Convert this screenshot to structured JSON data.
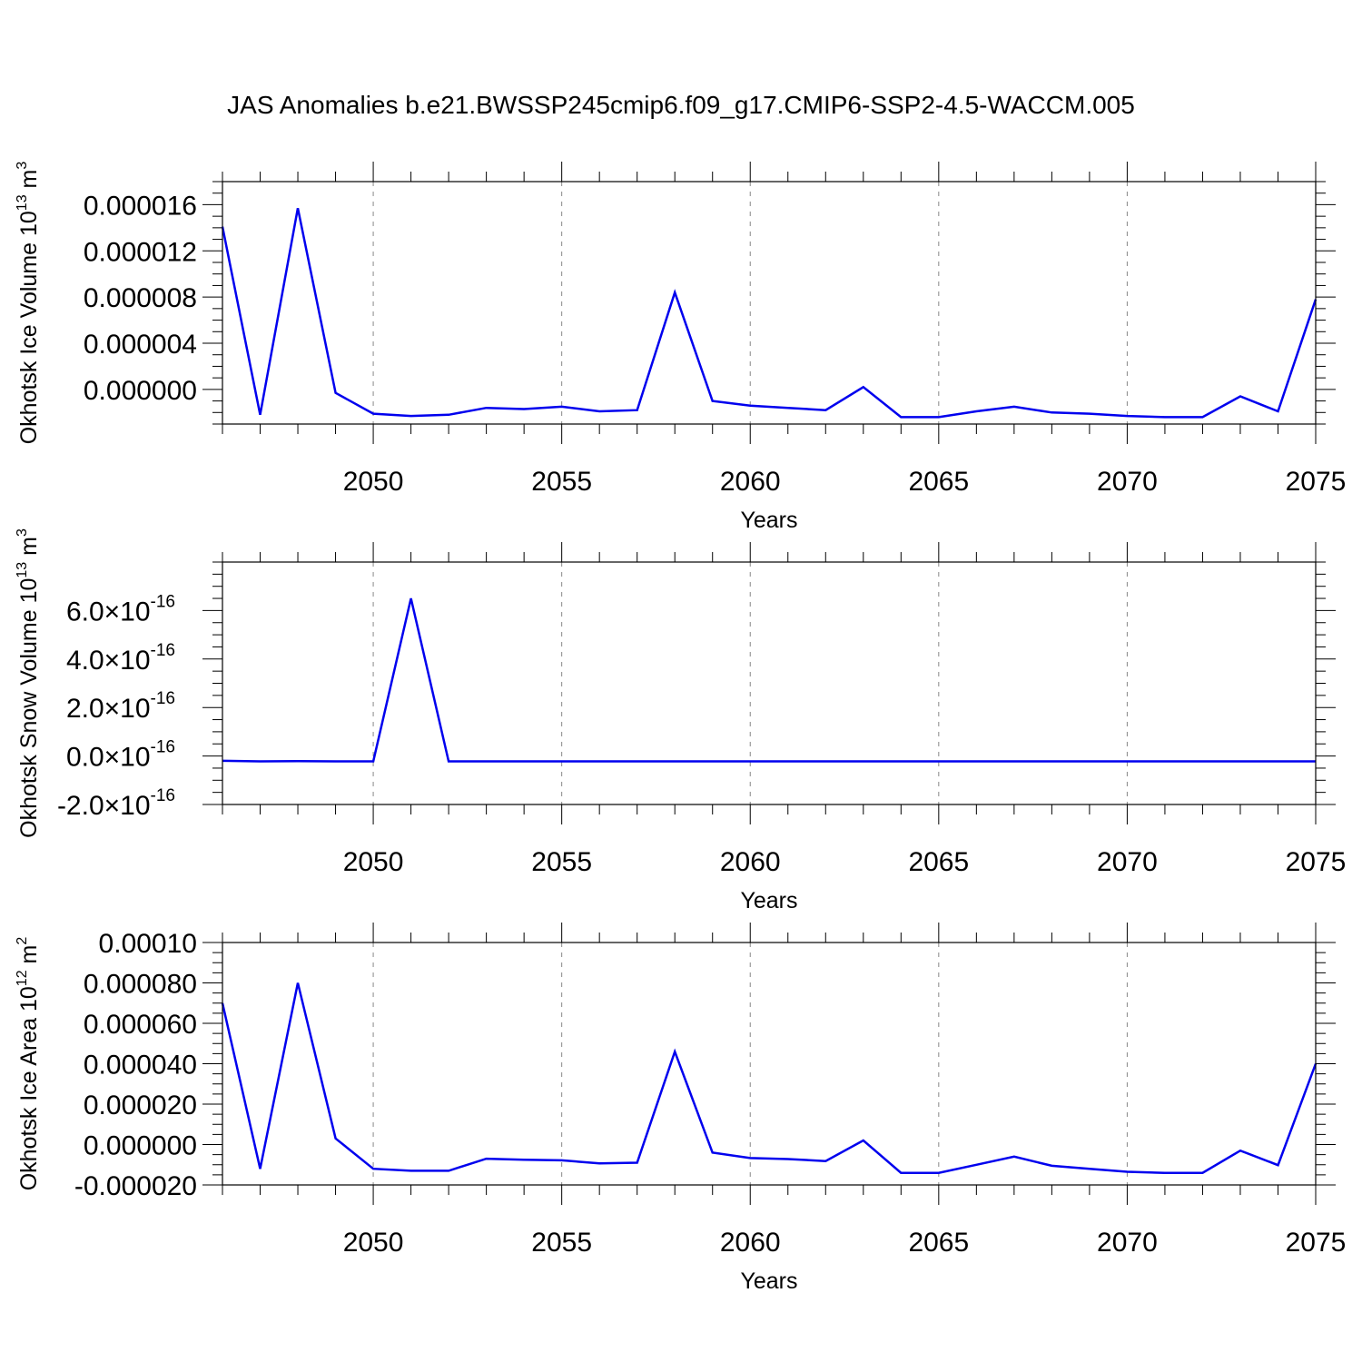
{
  "title": "JAS Anomalies b.e21.BWSSP245cmip6.f09_g17.CMIP6-SSP2-4.5-WACCM.005",
  "chart_data": [
    {
      "type": "line",
      "ylabel": "Okhotsk Ice Volume 10",
      "ylabel_sup": "13",
      "ylabel_unit": " m",
      "ylabel_unit_sup": "3",
      "xlabel": "Years",
      "xlim": [
        2046,
        2075
      ],
      "ylim": [
        -3e-06,
        1.8e-05
      ],
      "x_ticks": [
        2050,
        2055,
        2060,
        2065,
        2070,
        2075
      ],
      "x_tick_labels": [
        "2050",
        "2055",
        "2060",
        "2065",
        "2070",
        "2075"
      ],
      "y_ticks": [
        0,
        4e-06,
        8e-06,
        1.2e-05,
        1.6e-05
      ],
      "y_tick_labels": [
        "0.000000",
        "0.000004",
        "0.000008",
        "0.000012",
        "0.000016"
      ],
      "y_minor_step": 1e-06,
      "line_color": "#0000ee",
      "x": [
        2046,
        2047,
        2048,
        2049,
        2050,
        2051,
        2052,
        2053,
        2054,
        2055,
        2056,
        2057,
        2058,
        2059,
        2060,
        2061,
        2062,
        2063,
        2064,
        2065,
        2066,
        2067,
        2068,
        2069,
        2070,
        2071,
        2072,
        2073,
        2074,
        2075
      ],
      "values": [
        1.41e-05,
        -2.2e-06,
        1.57e-05,
        -3e-07,
        -2.1e-06,
        -2.3e-06,
        -2.2e-06,
        -1.6e-06,
        -1.7e-06,
        -1.5e-06,
        -1.9e-06,
        -1.8e-06,
        8.4e-06,
        -1e-06,
        -1.4e-06,
        -1.6e-06,
        -1.8e-06,
        2e-07,
        -2.4e-06,
        -2.4e-06,
        -1.9e-06,
        -1.5e-06,
        -2e-06,
        -2.1e-06,
        -2.3e-06,
        -2.4e-06,
        -2.4e-06,
        -6e-07,
        -1.9e-06,
        7.8e-06
      ]
    },
    {
      "type": "line",
      "ylabel": "Okhotsk Snow Volume 10",
      "ylabel_sup": "13",
      "ylabel_unit": " m",
      "ylabel_unit_sup": "3",
      "xlabel": "Years",
      "xlim": [
        2046,
        2075
      ],
      "ylim": [
        -2e-16,
        8e-16
      ],
      "x_ticks": [
        2050,
        2055,
        2060,
        2065,
        2070,
        2075
      ],
      "x_tick_labels": [
        "2050",
        "2055",
        "2060",
        "2065",
        "2070",
        "2075"
      ],
      "y_ticks": [
        -2e-16,
        0,
        2e-16,
        4e-16,
        6e-16
      ],
      "y_tick_labels": [
        "-2.0",
        "0.0",
        "2.0",
        "4.0",
        "6.0"
      ],
      "y_tick_multiplier": "10",
      "y_tick_exponent": "-16",
      "y_minor_step": 5e-17,
      "line_color": "#0000ee",
      "x": [
        2046,
        2047,
        2048,
        2049,
        2050,
        2051,
        2052,
        2053,
        2054,
        2055,
        2056,
        2057,
        2058,
        2059,
        2060,
        2061,
        2062,
        2063,
        2064,
        2065,
        2066,
        2067,
        2068,
        2069,
        2070,
        2071,
        2072,
        2073,
        2074,
        2075
      ],
      "values": [
        -2e-17,
        -2.2e-17,
        -2.1e-17,
        -2.2e-17,
        -2.2e-17,
        6.5e-16,
        -2.2e-17,
        -2.2e-17,
        -2.2e-17,
        -2.2e-17,
        -2.2e-17,
        -2.2e-17,
        -2.2e-17,
        -2.2e-17,
        -2.2e-17,
        -2.2e-17,
        -2.2e-17,
        -2.2e-17,
        -2.2e-17,
        -2.2e-17,
        -2.2e-17,
        -2.2e-17,
        -2.2e-17,
        -2.2e-17,
        -2.2e-17,
        -2.2e-17,
        -2.2e-17,
        -2.2e-17,
        -2.2e-17,
        -2.2e-17
      ]
    },
    {
      "type": "line",
      "ylabel": "Okhotsk Ice Area 10",
      "ylabel_sup": "12",
      "ylabel_unit": " m",
      "ylabel_unit_sup": "2",
      "xlabel": "Years",
      "xlim": [
        2046,
        2075
      ],
      "ylim": [
        -2e-05,
        0.0001
      ],
      "x_ticks": [
        2050,
        2055,
        2060,
        2065,
        2070,
        2075
      ],
      "x_tick_labels": [
        "2050",
        "2055",
        "2060",
        "2065",
        "2070",
        "2075"
      ],
      "y_ticks": [
        -2e-05,
        0,
        2e-05,
        4e-05,
        6e-05,
        8e-05,
        0.0001
      ],
      "y_tick_labels": [
        "-0.000020",
        "0.000000",
        "0.000020",
        "0.000040",
        "0.000060",
        "0.000080",
        "0.00010"
      ],
      "y_minor_step": 5e-06,
      "line_color": "#0000ee",
      "x": [
        2046,
        2047,
        2048,
        2049,
        2050,
        2051,
        2052,
        2053,
        2054,
        2055,
        2056,
        2057,
        2058,
        2059,
        2060,
        2061,
        2062,
        2063,
        2064,
        2065,
        2066,
        2067,
        2068,
        2069,
        2070,
        2071,
        2072,
        2073,
        2074,
        2075
      ],
      "values": [
        7e-05,
        -1.2e-05,
        8e-05,
        3e-06,
        -1.2e-05,
        -1.3e-05,
        -1.3e-05,
        -7e-06,
        -7.5e-06,
        -7.8e-06,
        -9.3e-06,
        -9e-06,
        4.6e-05,
        -4e-06,
        -6.7e-06,
        -7.2e-06,
        -8.2e-06,
        2e-06,
        -1.4e-05,
        -1.4e-05,
        -1e-05,
        -6e-06,
        -1.05e-05,
        -1.2e-05,
        -1.35e-05,
        -1.4e-05,
        -1.4e-05,
        -3e-06,
        -1.02e-05,
        4e-05
      ]
    }
  ]
}
